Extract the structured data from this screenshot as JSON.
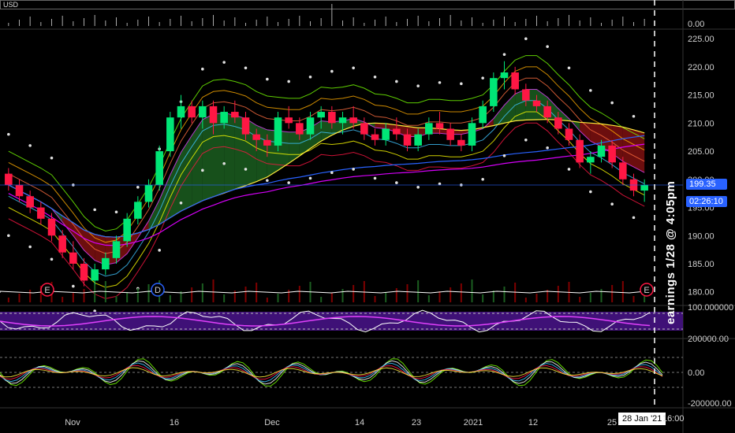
{
  "price_axis": {
    "currency": "USD",
    "ticks": [
      "225.00",
      "220.00",
      "215.00",
      "210.00",
      "205.00",
      "200.00",
      "195.00",
      "190.00",
      "185.00",
      "180.00"
    ],
    "current_price": "199.35",
    "countdown": "02:26:10"
  },
  "volume_axis": {
    "ticks": [
      "0.00"
    ]
  },
  "oscillator_axis": {
    "ticks": [
      "100.000000"
    ]
  },
  "momentum_axis": {
    "ticks": [
      "200000.00",
      "0.00",
      "-200000.00"
    ]
  },
  "time_axis": {
    "labels": [
      "Nov",
      "16",
      "Dec",
      "14",
      "23",
      "2021",
      "12",
      "25"
    ],
    "crosshair_date": "28 Jan '21",
    "crosshair_time": "16:00"
  },
  "events": [
    {
      "type": "earnings",
      "label": "E"
    },
    {
      "type": "dividend",
      "label": "D"
    },
    {
      "type": "earnings",
      "label": "E"
    }
  ],
  "annotation": "earnings 1/28 @ 4:05pm",
  "colors": {
    "up": "#00e676",
    "down": "#ff1744",
    "band_fill_up": "#1b5e20",
    "band_fill_down": "#7f1010",
    "badge": "#2962ff",
    "oscillator_bg": "#4a148c"
  },
  "chart_data": {
    "type": "candlestick",
    "ylim": [
      178,
      226
    ],
    "ohlc": [
      [
        201,
        202,
        198,
        199
      ],
      [
        199,
        200,
        196,
        197
      ],
      [
        197,
        198,
        194,
        195
      ],
      [
        195,
        196,
        192,
        193
      ],
      [
        193,
        194,
        189,
        190
      ],
      [
        190,
        191,
        186,
        187
      ],
      [
        187,
        189,
        184,
        185
      ],
      [
        185,
        186,
        181,
        182
      ],
      [
        182,
        185,
        180,
        184
      ],
      [
        184,
        187,
        183,
        186
      ],
      [
        186,
        190,
        185,
        189
      ],
      [
        189,
        194,
        188,
        193
      ],
      [
        193,
        197,
        192,
        196
      ],
      [
        196,
        200,
        195,
        199
      ],
      [
        199,
        206,
        198,
        205
      ],
      [
        205,
        212,
        204,
        211
      ],
      [
        211,
        215,
        209,
        213
      ],
      [
        213,
        214,
        210,
        211
      ],
      [
        211,
        214,
        209,
        213
      ],
      [
        213,
        214,
        208,
        210
      ],
      [
        210,
        213,
        209,
        212
      ],
      [
        212,
        214,
        210,
        211
      ],
      [
        211,
        212,
        207,
        208
      ],
      [
        208,
        209,
        205,
        207
      ],
      [
        207,
        208,
        204,
        206
      ],
      [
        206,
        212,
        205,
        211
      ],
      [
        211,
        213,
        209,
        210
      ],
      [
        210,
        211,
        207,
        208
      ],
      [
        208,
        212,
        207,
        211
      ],
      [
        211,
        213,
        209,
        212
      ],
      [
        212,
        213,
        209,
        210
      ],
      [
        210,
        212,
        208,
        211
      ],
      [
        211,
        213,
        209,
        210
      ],
      [
        210,
        211,
        207,
        208
      ],
      [
        208,
        209,
        206,
        207
      ],
      [
        207,
        210,
        206,
        209
      ],
      [
        209,
        211,
        207,
        208
      ],
      [
        208,
        209,
        205,
        206
      ],
      [
        206,
        209,
        205,
        208
      ],
      [
        208,
        211,
        207,
        210
      ],
      [
        210,
        212,
        208,
        209
      ],
      [
        209,
        210,
        206,
        207
      ],
      [
        207,
        208,
        205,
        206
      ],
      [
        206,
        211,
        205,
        210
      ],
      [
        210,
        214,
        209,
        213
      ],
      [
        213,
        219,
        212,
        218
      ],
      [
        218,
        221,
        216,
        219
      ],
      [
        219,
        220,
        215,
        216
      ],
      [
        216,
        217,
        213,
        214
      ],
      [
        214,
        215,
        212,
        213
      ],
      [
        213,
        214,
        210,
        211
      ],
      [
        211,
        212,
        208,
        209
      ],
      [
        209,
        210,
        206,
        207
      ],
      [
        207,
        208,
        202,
        203
      ],
      [
        203,
        205,
        201,
        204
      ],
      [
        204,
        207,
        203,
        206
      ],
      [
        206,
        207,
        202,
        203
      ],
      [
        203,
        204,
        199,
        200
      ],
      [
        200,
        201,
        197,
        198
      ],
      [
        198,
        200,
        196,
        199
      ]
    ]
  }
}
